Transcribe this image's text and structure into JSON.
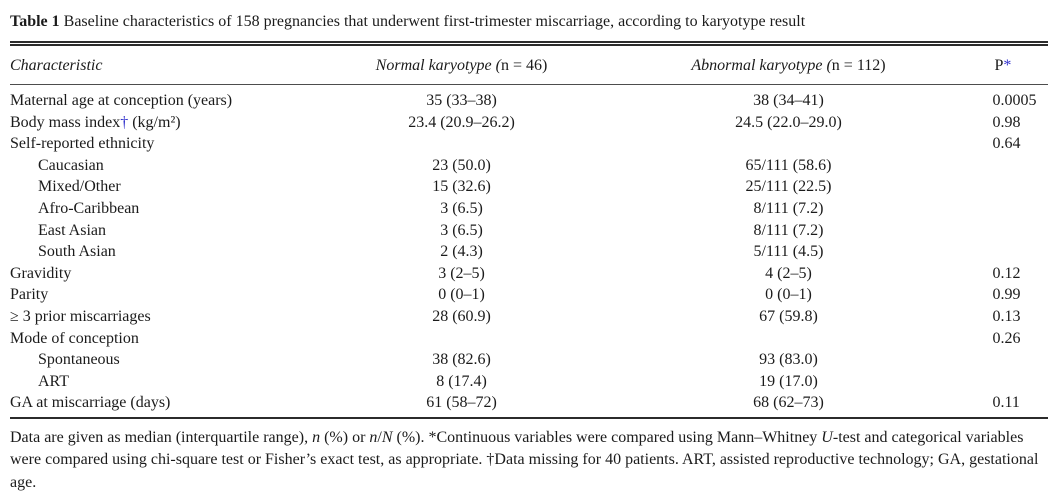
{
  "title": {
    "label": "Table 1",
    "text": "Baseline characteristics of 158 pregnancies that underwent first-trimester miscarriage, according to karyotype result"
  },
  "colors": {
    "marker_blue": "#3333cc",
    "text": "#1b1b1b",
    "rule": "#2b2b2b"
  },
  "table": {
    "header": {
      "characteristic": "Characteristic",
      "normal_pre": "Normal karyotype (",
      "normal_n": "n",
      "normal_post": " = 46)",
      "abnormal_pre": "Abnormal karyotype (",
      "abnormal_n": "n",
      "abnormal_post": " = 112)",
      "p": "P",
      "p_marker": "*"
    },
    "rows": [
      {
        "label": "Maternal age at conception (years)",
        "indent": false,
        "normal": "35 (33–38)",
        "abnormal": "38 (34–41)",
        "p": "0.0005"
      },
      {
        "label": "Body mass index",
        "dagger": "†",
        "label_after": " (kg/m²)",
        "indent": false,
        "normal": "23.4 (20.9–26.2)",
        "abnormal": "24.5 (22.0–29.0)",
        "p": "0.98"
      },
      {
        "label": "Self-reported ethnicity",
        "indent": false,
        "normal": "",
        "abnormal": "",
        "p": "0.64"
      },
      {
        "label": "Caucasian",
        "indent": true,
        "normal": "23 (50.0)",
        "abnormal": "65/111 (58.6)",
        "p": ""
      },
      {
        "label": "Mixed/Other",
        "indent": true,
        "normal": "15 (32.6)",
        "abnormal": "25/111 (22.5)",
        "p": ""
      },
      {
        "label": "Afro-Caribbean",
        "indent": true,
        "normal": "3 (6.5)",
        "abnormal": "8/111 (7.2)",
        "p": ""
      },
      {
        "label": "East Asian",
        "indent": true,
        "normal": "3 (6.5)",
        "abnormal": "8/111 (7.2)",
        "p": ""
      },
      {
        "label": "South Asian",
        "indent": true,
        "normal": "2 (4.3)",
        "abnormal": "5/111 (4.5)",
        "p": ""
      },
      {
        "label": "Gravidity",
        "indent": false,
        "normal": "3 (2–5)",
        "abnormal": "4 (2–5)",
        "p": "0.12"
      },
      {
        "label": "Parity",
        "indent": false,
        "normal": "0 (0–1)",
        "abnormal": "0 (0–1)",
        "p": "0.99"
      },
      {
        "label": "≥ 3 prior miscarriages",
        "indent": false,
        "normal": "28 (60.9)",
        "abnormal": "67 (59.8)",
        "p": "0.13"
      },
      {
        "label": "Mode of conception",
        "indent": false,
        "normal": "",
        "abnormal": "",
        "p": "0.26"
      },
      {
        "label": "Spontaneous",
        "indent": true,
        "normal": "38 (82.6)",
        "abnormal": "93 (83.0)",
        "p": ""
      },
      {
        "label": "ART",
        "indent": true,
        "normal": "8 (17.4)",
        "abnormal": "19 (17.0)",
        "p": ""
      },
      {
        "label": "GA at miscarriage (days)",
        "indent": false,
        "normal": "61 (58–72)",
        "abnormal": "68 (62–73)",
        "p": "0.11"
      }
    ]
  },
  "footnote": {
    "segments": [
      {
        "t": "Data are given as median (interquartile range), "
      },
      {
        "t": "n",
        "i": 1
      },
      {
        "t": " (%) or "
      },
      {
        "t": "n",
        "i": 1
      },
      {
        "t": "/"
      },
      {
        "t": "N",
        "i": 1
      },
      {
        "t": " (%). *Continuous variables were compared using Mann–Whitney "
      },
      {
        "t": "U",
        "i": 1
      },
      {
        "t": "-test and categorical variables were compared using chi-square test or Fisher’s exact test, as appropriate. †Data missing for 40 patients. ART, assisted reproductive technology; GA, gestational age."
      }
    ]
  }
}
